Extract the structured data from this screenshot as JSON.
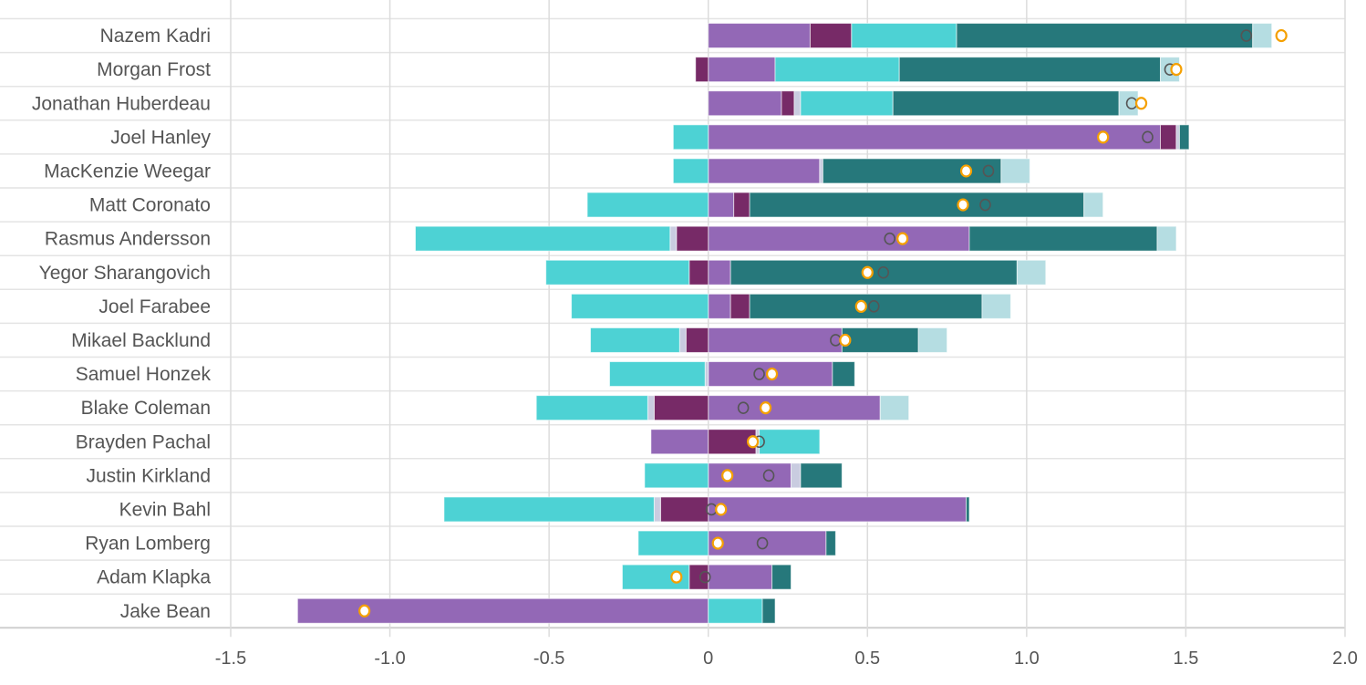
{
  "chart_data": {
    "type": "bar",
    "orientation": "horizontal",
    "stacked": "diverging",
    "xlim": [
      -1.5,
      2.0
    ],
    "xticks": [
      -1.5,
      -1.0,
      -0.5,
      0,
      0.5,
      1.0,
      1.5,
      2.0
    ],
    "xtick_labels": [
      "-1.5",
      "-1.0",
      "-0.5",
      "0",
      "0.5",
      "1.0",
      "1.5",
      "2.0"
    ],
    "grid": true,
    "categories": [
      "Nazem Kadri",
      "Morgan Frost",
      "Jonathan Huberdeau",
      "Joel Hanley",
      "MacKenzie Weegar",
      "Matt Coronato",
      "Rasmus Andersson",
      "Yegor Sharangovich",
      "Joel Farabee",
      "Mikael Backlund",
      "Samuel Honzek",
      "Blake Coleman",
      "Brayden Pachal",
      "Justin Kirkland",
      "Kevin Bahl",
      "Ryan Lomberg",
      "Adam Klapka",
      "Jake Bean"
    ],
    "series": [
      {
        "color": "#9368b6",
        "values": [
          0.32,
          0.21,
          0.23,
          1.42,
          0.35,
          0.08,
          0.82,
          0.07,
          0.07,
          0.42,
          0.39,
          0.54,
          -0.18,
          0.26,
          0.81,
          0.37,
          0.2,
          -1.29
        ]
      },
      {
        "color": "#772a67",
        "values": [
          0.13,
          -0.04,
          0.04,
          0.05,
          0,
          0.05,
          -0.1,
          -0.06,
          0.06,
          -0.07,
          0,
          -0.17,
          0.15,
          0,
          -0.15,
          0,
          -0.06,
          0
        ]
      },
      {
        "color": "#c9cce0",
        "values": [
          0,
          0,
          0.02,
          0.01,
          0.01,
          0,
          -0.02,
          0,
          0,
          -0.02,
          -0.01,
          -0.02,
          0.01,
          0.03,
          -0.02,
          0,
          0,
          0
        ]
      },
      {
        "color": "#4dd2d4",
        "values": [
          0.33,
          0.39,
          0.29,
          -0.11,
          -0.11,
          -0.38,
          -0.8,
          -0.45,
          -0.43,
          -0.28,
          -0.3,
          -0.35,
          0.19,
          -0.2,
          -0.66,
          -0.22,
          -0.21,
          0.17
        ]
      },
      {
        "color": "#26787b",
        "values": [
          0.93,
          0.82,
          0.71,
          0.03,
          0.56,
          1.05,
          0.59,
          0.9,
          0.73,
          0.24,
          0.07,
          0,
          0,
          0.13,
          0.01,
          0.03,
          0.06,
          0.04
        ]
      },
      {
        "color": "#b5dde2",
        "values": [
          0.06,
          0.06,
          0.06,
          0,
          0.09,
          0.06,
          0.06,
          0.09,
          0.09,
          0.09,
          0,
          0.09,
          0,
          0,
          0,
          0,
          0,
          0
        ]
      }
    ],
    "markers": [
      {
        "style": "hollow-grey-circle",
        "color": "#555555",
        "values": [
          1.69,
          1.45,
          1.33,
          1.38,
          0.88,
          0.87,
          0.57,
          0.55,
          0.52,
          0.4,
          0.16,
          0.11,
          0.16,
          0.19,
          0.01,
          0.17,
          -0.01,
          null
        ]
      },
      {
        "style": "white-circle-orange-ring",
        "color": "#f5a000",
        "values": [
          1.8,
          1.47,
          1.36,
          1.24,
          0.81,
          0.8,
          0.61,
          0.5,
          0.48,
          0.43,
          0.2,
          0.18,
          0.14,
          0.06,
          0.04,
          0.03,
          -0.1,
          -1.08
        ]
      }
    ]
  }
}
